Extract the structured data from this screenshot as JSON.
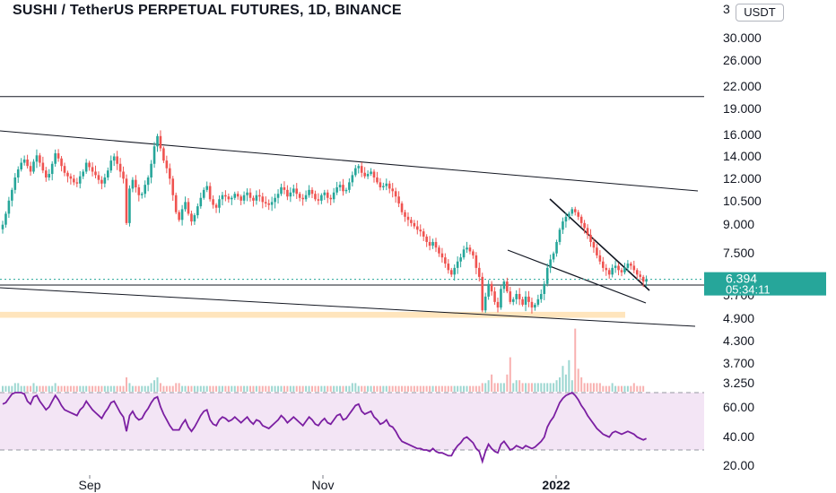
{
  "header": {
    "title": "SUSHI / TetherUS PERPETUAL FUTURES, 1D, BINANCE",
    "currency": "USDT"
  },
  "price_box": {
    "price": "6.394",
    "countdown": "05:34:11",
    "color": "#26a69a"
  },
  "colors": {
    "up": "#26a69a",
    "down": "#ef5350",
    "rsi_line": "#7b1fa2",
    "rsi_band": "#f3e5f5",
    "support_zone": "#ffe0b2",
    "trendline": "#131722"
  },
  "chart_data": [
    {
      "type": "candlestick",
      "yscale": "log",
      "ylim": [
        3.0,
        35.0
      ],
      "y_ticks": [
        "3",
        "30.000",
        "26.000",
        "22.000",
        "19.000",
        "16.000",
        "14.000",
        "12.000",
        "10.500",
        "9.000",
        "7.500",
        "5.700",
        "4.900",
        "4.300",
        "3.700",
        "3.250"
      ],
      "x_ticks": [
        "Sep",
        "Nov",
        "2022"
      ],
      "horizontal_line": 21.6,
      "support_zone": [
        4.95,
        5.15
      ],
      "last_price": 6.394,
      "pattern": "falling wedge",
      "close_series": [
        9.2,
        9.9,
        10.8,
        11.6,
        12.6,
        13.3,
        13.9,
        14.2,
        13.6,
        13.1,
        14.0,
        14.6,
        13.9,
        13.2,
        12.6,
        12.9,
        13.8,
        14.8,
        14.3,
        13.6,
        13.0,
        12.7,
        12.5,
        12.2,
        12.1,
        12.7,
        13.1,
        13.9,
        13.5,
        13.1,
        12.8,
        12.4,
        12.1,
        12.6,
        13.2,
        14.1,
        14.5,
        13.8,
        13.1,
        12.5,
        9.3,
        11.7,
        12.4,
        11.8,
        11.2,
        11.3,
        12.0,
        12.6,
        13.8,
        15.5,
        16.6,
        15.3,
        14.1,
        13.4,
        12.5,
        11.2,
        10.0,
        9.5,
        10.2,
        10.7,
        9.9,
        9.4,
        9.8,
        10.4,
        11.0,
        11.6,
        11.9,
        10.9,
        10.5,
        10.3,
        10.9,
        11.2,
        11.1,
        10.9,
        11.0,
        11.3,
        11.1,
        10.8,
        11.2,
        11.4,
        11.0,
        10.8,
        11.2,
        11.1,
        10.7,
        10.6,
        10.5,
        10.7,
        11.0,
        11.3,
        11.8,
        11.6,
        11.1,
        11.4,
        11.7,
        11.3,
        11.0,
        10.9,
        11.2,
        11.6,
        11.3,
        10.9,
        10.8,
        11.2,
        11.4,
        11.0,
        10.9,
        11.4,
        11.8,
        12.0,
        11.5,
        11.6,
        12.2,
        12.8,
        13.4,
        13.6,
        13.0,
        12.7,
        12.9,
        13.1,
        12.6,
        12.2,
        11.8,
        11.9,
        12.1,
        11.7,
        11.5,
        11.1,
        10.6,
        10.0,
        9.7,
        9.5,
        9.3,
        9.1,
        8.9,
        8.8,
        8.5,
        8.2,
        8.0,
        8.2,
        7.9,
        7.6,
        7.4,
        7.1,
        6.8,
        6.6,
        6.9,
        7.2,
        7.4,
        7.8,
        7.9,
        7.7,
        7.5,
        6.9,
        6.5,
        5.2,
        5.7,
        6.2,
        5.9,
        5.5,
        5.3,
        6.0,
        6.3,
        5.9,
        5.5,
        5.6,
        5.8,
        5.6,
        5.4,
        5.7,
        5.5,
        5.3,
        5.4,
        5.6,
        5.8,
        6.2,
        6.9,
        7.3,
        7.6,
        8.2,
        8.9,
        9.4,
        9.7,
        9.9,
        10.2,
        10.0,
        9.7,
        9.3,
        9.0,
        8.6,
        8.2,
        7.9,
        7.5,
        7.2,
        6.9,
        6.8,
        6.6,
        6.9,
        7.0,
        6.8,
        6.7,
        6.9,
        7.1,
        7.0,
        6.8,
        6.6,
        6.5,
        6.3,
        6.4
      ]
    },
    {
      "type": "bar",
      "series_role": "volume",
      "values": [
        2,
        2,
        2,
        2,
        3,
        3,
        2,
        2,
        2,
        2,
        3,
        2,
        2,
        2,
        2,
        2,
        2,
        3,
        2,
        2,
        2,
        2,
        2,
        2,
        2,
        2,
        2,
        2,
        2,
        2,
        2,
        2,
        2,
        2,
        2,
        2,
        2,
        2,
        2,
        2,
        5,
        3,
        2,
        2,
        2,
        2,
        2,
        2,
        3,
        4,
        5,
        3,
        2,
        2,
        2,
        2,
        3,
        3,
        2,
        2,
        2,
        2,
        2,
        2,
        2,
        2,
        2,
        2,
        2,
        2,
        2,
        2,
        2,
        2,
        2,
        2,
        2,
        2,
        2,
        2,
        2,
        2,
        2,
        2,
        2,
        2,
        2,
        2,
        2,
        2,
        2,
        2,
        2,
        2,
        2,
        2,
        2,
        2,
        2,
        2,
        2,
        2,
        2,
        2,
        2,
        2,
        2,
        2,
        2,
        2,
        2,
        2,
        2,
        3,
        3,
        2,
        2,
        2,
        2,
        2,
        2,
        2,
        2,
        2,
        2,
        2,
        2,
        2,
        2,
        2,
        2,
        2,
        2,
        2,
        2,
        2,
        2,
        2,
        2,
        2,
        2,
        2,
        2,
        2,
        2,
        2,
        2,
        2,
        2,
        2,
        2,
        2,
        2,
        2,
        2,
        3,
        3,
        4,
        6,
        3,
        3,
        3,
        3,
        6,
        12,
        3,
        4,
        4,
        3,
        3,
        3,
        3,
        3,
        3,
        3,
        3,
        3,
        3,
        3,
        4,
        5,
        9,
        6,
        11,
        4,
        22,
        8,
        5,
        3,
        3,
        3,
        3,
        3,
        3,
        2,
        2,
        2,
        3,
        2,
        2,
        2,
        2,
        2,
        2,
        3,
        2,
        2,
        2
      ]
    },
    {
      "type": "line",
      "series_role": "RSI",
      "ylim": [
        20,
        70
      ],
      "y_ticks": [
        "60.00",
        "40.00",
        "20.00"
      ],
      "band": [
        30,
        70
      ],
      "values": [
        62,
        63,
        66,
        69,
        70,
        70,
        70,
        69,
        64,
        62,
        67,
        68,
        64,
        61,
        58,
        60,
        64,
        68,
        65,
        61,
        58,
        57,
        56,
        55,
        54,
        58,
        60,
        64,
        61,
        58,
        56,
        54,
        52,
        56,
        59,
        63,
        64,
        60,
        56,
        53,
        43,
        54,
        57,
        53,
        51,
        52,
        56,
        59,
        63,
        66,
        67,
        60,
        55,
        51,
        47,
        44,
        44,
        44,
        48,
        51,
        46,
        43,
        46,
        50,
        54,
        57,
        58,
        51,
        48,
        47,
        51,
        53,
        52,
        50,
        51,
        53,
        51,
        49,
        51,
        53,
        50,
        48,
        51,
        50,
        47,
        46,
        45,
        47,
        49,
        51,
        54,
        52,
        49,
        51,
        53,
        51,
        49,
        47,
        50,
        53,
        51,
        48,
        47,
        50,
        52,
        49,
        48,
        51,
        54,
        55,
        51,
        52,
        55,
        58,
        61,
        62,
        57,
        55,
        56,
        57,
        53,
        51,
        48,
        49,
        51,
        47,
        46,
        43,
        39,
        36,
        35,
        34,
        33,
        32,
        31,
        31,
        30,
        30,
        29,
        31,
        29,
        28,
        28,
        27,
        26,
        26,
        30,
        33,
        35,
        38,
        39,
        37,
        35,
        31,
        29,
        22,
        29,
        34,
        31,
        29,
        28,
        34,
        36,
        33,
        30,
        31,
        33,
        32,
        31,
        33,
        32,
        31,
        32,
        34,
        36,
        39,
        46,
        50,
        53,
        58,
        63,
        66,
        68,
        69,
        70,
        68,
        65,
        61,
        58,
        54,
        51,
        48,
        45,
        43,
        41,
        40,
        39,
        42,
        43,
        42,
        41,
        42,
        43,
        42,
        41,
        39,
        38,
        37,
        38
      ]
    }
  ]
}
